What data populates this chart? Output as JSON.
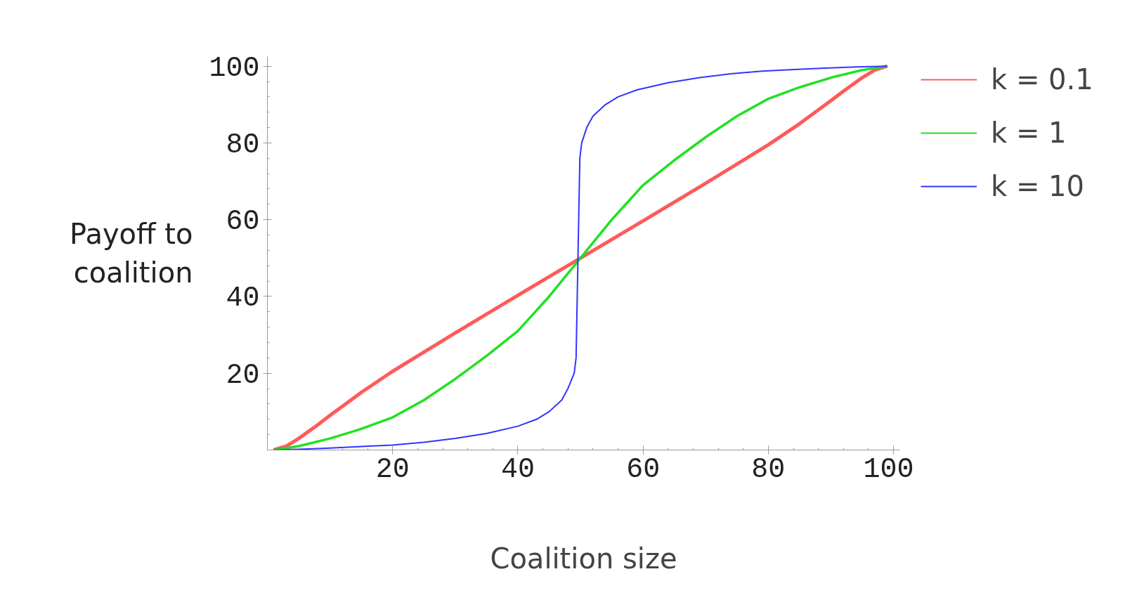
{
  "chart_data": {
    "type": "line",
    "xlabel": "Coalition size",
    "ylabel": "Payoff to\ncoalition",
    "xlim": [
      0,
      101
    ],
    "ylim": [
      0,
      102.5
    ],
    "xticks": [
      20,
      40,
      60,
      80,
      100
    ],
    "yticks": [
      20,
      40,
      60,
      80,
      100
    ],
    "grid": false,
    "legend": "top right",
    "marker": "none",
    "line_style": "solid",
    "series": [
      {
        "name": "k = 0.1",
        "color": "#ff5a5a",
        "x": [
          1,
          3,
          5,
          8,
          10,
          15,
          20,
          30,
          40,
          50,
          60,
          70,
          80,
          85,
          90,
          92,
          95,
          97,
          99
        ],
        "values": [
          0,
          1,
          3,
          6.5,
          9,
          15,
          20.5,
          30.5,
          40.3,
          50,
          59.7,
          69.5,
          79.5,
          85,
          91,
          93.5,
          97,
          99,
          100
        ]
      },
      {
        "name": "k = 1",
        "color": "#22e022",
        "x": [
          1,
          5,
          10,
          15,
          20,
          25,
          30,
          35,
          40,
          45,
          50,
          55,
          60,
          65,
          70,
          75,
          80,
          85,
          90,
          95,
          99
        ],
        "values": [
          0,
          1,
          3,
          5.5,
          8.5,
          13,
          18.5,
          24.5,
          31,
          40,
          50,
          60,
          69,
          75.5,
          81.5,
          87,
          91.5,
          94.5,
          97,
          99,
          100
        ]
      },
      {
        "name": "k = 10",
        "color": "#3333ff",
        "x": [
          1,
          5,
          10,
          15,
          20,
          25,
          30,
          35,
          40,
          43,
          45,
          47,
          48,
          49,
          49.3,
          49.6,
          49.9,
          50.2,
          51,
          52,
          54,
          56,
          59,
          64,
          69,
          74,
          79,
          84,
          89,
          94,
          99
        ],
        "values": [
          0,
          0.2,
          0.5,
          0.9,
          1.3,
          2,
          3,
          4.3,
          6.2,
          8,
          10,
          13,
          16,
          20,
          24,
          50,
          76,
          80,
          84,
          87,
          90,
          92,
          93.8,
          95.7,
          97,
          98,
          98.7,
          99.1,
          99.5,
          99.8,
          100
        ]
      }
    ]
  }
}
